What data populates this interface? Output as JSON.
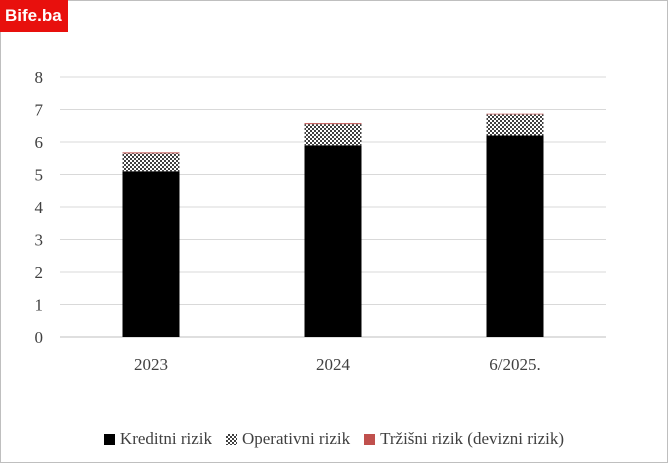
{
  "watermark": "Bife.ba",
  "chart_data": {
    "type": "bar",
    "stacked": true,
    "categories": [
      "2023",
      "2024",
      "6/2025."
    ],
    "series": [
      {
        "name": "Kreditni rizik",
        "values": [
          5.1,
          5.9,
          6.2
        ],
        "color": "#000000",
        "pattern": "solid"
      },
      {
        "name": "Operativni rizik",
        "values": [
          0.55,
          0.65,
          0.65
        ],
        "color": "#595959",
        "pattern": "checker"
      },
      {
        "name": "Tržišni rizik (devizni rizik)",
        "values": [
          0.03,
          0.03,
          0.02
        ],
        "color": "#c0504d",
        "pattern": "solid"
      }
    ],
    "ylim": [
      0,
      8
    ],
    "yticks": [
      0,
      1,
      2,
      3,
      4,
      5,
      6,
      7,
      8
    ],
    "grid": true,
    "legend_position": "bottom"
  }
}
